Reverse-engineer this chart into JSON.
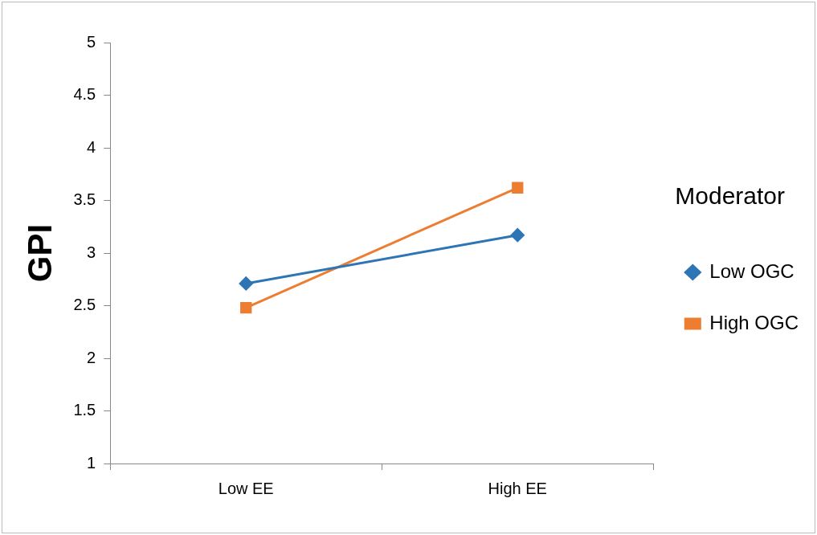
{
  "chart_data": {
    "type": "line",
    "ylabel": "GPI",
    "legend_title": "Moderator",
    "categories": [
      "Low EE",
      "High EE"
    ],
    "series": [
      {
        "name": "Low OGC",
        "color": "#2e75b6",
        "values": [
          2.71,
          3.17
        ],
        "marker": "diamond"
      },
      {
        "name": "High OGC",
        "color": "#ed7d31",
        "values": [
          2.48,
          3.62
        ],
        "marker": "square"
      }
    ],
    "ylim": [
      1,
      5
    ],
    "yticks": [
      1,
      1.5,
      2,
      2.5,
      3,
      3.5,
      4,
      4.5,
      5
    ],
    "grid": false,
    "legend": "right"
  }
}
